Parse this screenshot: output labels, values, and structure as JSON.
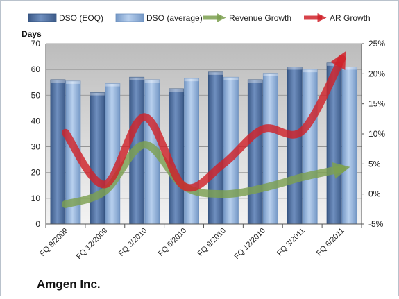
{
  "chart_data": {
    "type": "bar",
    "company": "Amgen Inc.",
    "ylabel": "Days",
    "ylim": [
      0,
      70
    ],
    "yticks": [
      "0",
      "10",
      "20",
      "30",
      "40",
      "50",
      "60",
      "70"
    ],
    "y2lim": [
      -5,
      25
    ],
    "y2ticks": [
      "-5%",
      "0%",
      "5%",
      "10%",
      "15%",
      "20%",
      "25%"
    ],
    "categories": [
      "FQ 9/2009",
      "FQ 12/2009",
      "FQ 3/2010",
      "FQ 6/2010",
      "FQ 9/2010",
      "FQ 12/2010",
      "FQ 3/2011",
      "FQ 6/2011"
    ],
    "series": [
      {
        "name": "DSO (EOQ)",
        "type": "bar",
        "axis": "left",
        "color": "#4f6f9f",
        "values": [
          56,
          51,
          57,
          52.5,
          59,
          56,
          61,
          62.5
        ]
      },
      {
        "name": "DSO (average)",
        "type": "bar",
        "axis": "left",
        "color": "#8fb0d9",
        "values": [
          55.5,
          54.5,
          56,
          56.5,
          57,
          58.5,
          60,
          61
        ]
      },
      {
        "name": "Revenue Growth",
        "type": "line",
        "axis": "right",
        "color": "#7da050",
        "values": [
          -1.7,
          0.5,
          8.2,
          1.3,
          0,
          1,
          2.8,
          4.2
        ]
      },
      {
        "name": "AR Growth",
        "type": "line",
        "axis": "right",
        "color": "#d0222a",
        "values": [
          10.2,
          1.6,
          12.8,
          1.3,
          5,
          10.8,
          10.5,
          22.5
        ]
      }
    ],
    "grid": true,
    "legend": "top"
  }
}
